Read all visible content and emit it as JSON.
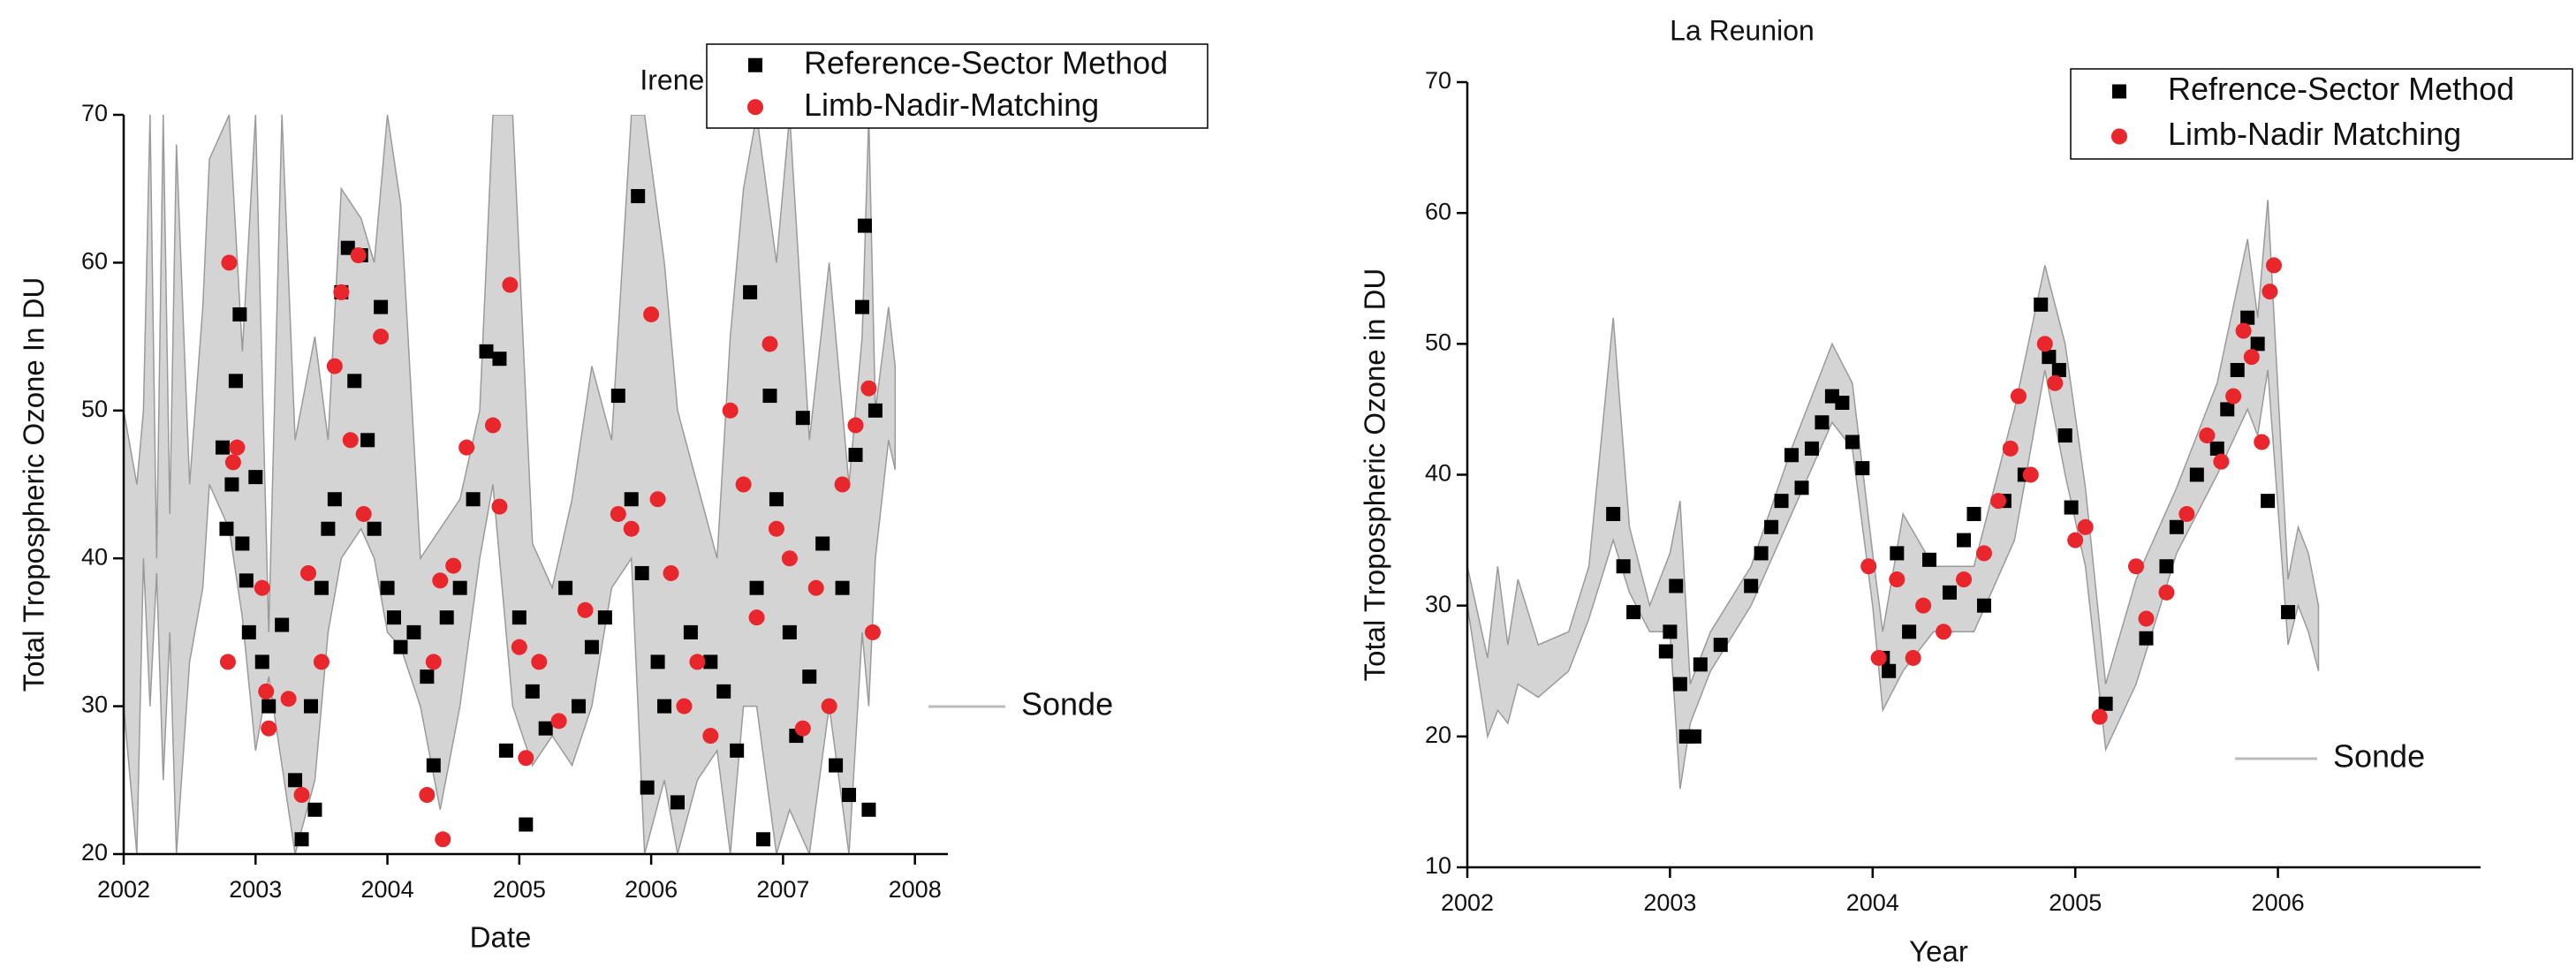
{
  "chart_data": [
    {
      "type": "scatter",
      "title": "Irene, South Africa",
      "xlabel": "Date",
      "ylabel": "Total Tropospheric Ozone In DU",
      "xlim": [
        2002,
        2008.25
      ],
      "xticks": [
        2002,
        2003,
        2004,
        2005,
        2006,
        2007,
        2008
      ],
      "ylim": [
        20,
        70
      ],
      "yticks": [
        20,
        30,
        40,
        50,
        60,
        70
      ],
      "legend": "upper right",
      "series": [
        {
          "name": "Reference-Sector Method",
          "color": "#000000",
          "marker": "square",
          "x": [
            2002.75,
            2002.78,
            2002.82,
            2002.85,
            2002.88,
            2002.9,
            2002.93,
            2002.95,
            2003.0,
            2003.05,
            2003.1,
            2003.2,
            2003.3,
            2003.35,
            2003.42,
            2003.45,
            2003.5,
            2003.55,
            2003.6,
            2003.65,
            2003.7,
            2003.75,
            2003.8,
            2003.85,
            2003.9,
            2003.95,
            2004.0,
            2004.05,
            2004.1,
            2004.2,
            2004.3,
            2004.35,
            2004.45,
            2004.55,
            2004.65,
            2004.75,
            2004.85,
            2004.9,
            2005.0,
            2005.05,
            2005.1,
            2005.2,
            2005.35,
            2005.45,
            2005.55,
            2005.65,
            2005.75,
            2005.85,
            2005.9,
            2005.93,
            2005.97,
            2006.05,
            2006.1,
            2006.2,
            2006.3,
            2006.45,
            2006.55,
            2006.65,
            2006.75,
            2006.8,
            2006.85,
            2006.9,
            2006.95,
            2007.05,
            2007.1,
            2007.15,
            2007.2,
            2007.3,
            2007.4,
            2007.45,
            2007.5,
            2007.55,
            2007.6,
            2007.62,
            2007.65,
            2007.7
          ],
          "values": [
            47.5,
            42,
            45,
            52,
            56.5,
            41,
            38.5,
            35,
            45.5,
            33,
            30,
            35.5,
            25,
            21,
            30,
            23,
            38,
            42,
            44,
            58,
            61,
            52,
            60.5,
            48,
            42,
            57,
            38,
            36,
            34,
            35,
            32,
            26,
            36,
            38,
            44,
            54,
            53.5,
            27,
            36,
            22,
            31,
            28.5,
            38,
            30,
            34,
            36,
            51,
            44,
            64.5,
            39,
            24.5,
            33,
            30,
            23.5,
            35,
            33,
            31,
            27,
            58,
            38,
            21,
            51,
            44,
            35,
            28,
            49.5,
            32,
            41,
            26,
            38,
            24,
            47,
            57,
            62.5,
            23,
            50
          ]
        },
        {
          "name": "Limb-Nadir-Matching",
          "color": "#e8262b",
          "marker": "circle",
          "x": [
            2002.8,
            2002.83,
            2002.86,
            2002.79,
            2003.05,
            2003.08,
            2003.1,
            2003.25,
            2003.35,
            2003.4,
            2003.5,
            2003.6,
            2003.65,
            2003.72,
            2003.78,
            2003.82,
            2003.95,
            2004.3,
            2004.35,
            2004.4,
            2004.42,
            2004.5,
            2004.6,
            2004.8,
            2004.85,
            2004.93,
            2005.0,
            2005.05,
            2005.15,
            2005.3,
            2005.5,
            2005.75,
            2005.85,
            2006.0,
            2006.05,
            2006.15,
            2006.25,
            2006.35,
            2006.45,
            2006.6,
            2006.7,
            2006.8,
            2006.9,
            2006.95,
            2007.05,
            2007.15,
            2007.25,
            2007.35,
            2007.45,
            2007.55,
            2007.65,
            2007.68
          ],
          "values": [
            60,
            46.5,
            47.5,
            33,
            38,
            31,
            28.5,
            30.5,
            24,
            39,
            33,
            53,
            58,
            48,
            60.5,
            43,
            55,
            24,
            33,
            38.5,
            21,
            39.5,
            47.5,
            49,
            43.5,
            58.5,
            34,
            26.5,
            33,
            29,
            36.5,
            43,
            42,
            56.5,
            44,
            39,
            30,
            33,
            28,
            50,
            45,
            36,
            54.5,
            42,
            40,
            28.5,
            38,
            30,
            45,
            49,
            51.5,
            35
          ]
        }
      ],
      "band": {
        "name": "Sonde",
        "color": "#d4d4d4",
        "x": [
          2002.0,
          2002.1,
          2002.15,
          2002.2,
          2002.25,
          2002.3,
          2002.35,
          2002.4,
          2002.5,
          2002.6,
          2002.65,
          2002.8,
          2002.9,
          2003.0,
          2003.1,
          2003.2,
          2003.3,
          2003.45,
          2003.55,
          2003.65,
          2003.8,
          2003.9,
          2004.0,
          2004.1,
          2004.25,
          2004.4,
          2004.55,
          2004.7,
          2004.8,
          2004.95,
          2005.1,
          2005.25,
          2005.4,
          2005.55,
          2005.7,
          2005.85,
          2005.95,
          2006.1,
          2006.2,
          2006.35,
          2006.5,
          2006.6,
          2006.7,
          2006.8,
          2006.95,
          2007.05,
          2007.2,
          2007.35,
          2007.5,
          2007.6,
          2007.65,
          2007.7,
          2007.8,
          2007.85
        ],
        "low": [
          30,
          20,
          40,
          30,
          39,
          25,
          35,
          20,
          33,
          38,
          45,
          42,
          36,
          27,
          32,
          26,
          20,
          25,
          35,
          40,
          42,
          40,
          35,
          34,
          30,
          23,
          30,
          40,
          45,
          30,
          26,
          28,
          26,
          30,
          38,
          40,
          20,
          25,
          20,
          25,
          27,
          20,
          30,
          30,
          20,
          23,
          20,
          30,
          20,
          35,
          30,
          40,
          48,
          46
        ],
        "high": [
          50,
          45,
          50,
          70,
          40,
          70,
          43,
          68,
          45,
          57,
          67,
          70,
          54,
          70,
          35,
          70,
          48,
          55,
          48,
          65,
          63,
          60,
          70,
          64,
          40,
          42,
          44,
          50,
          70,
          70,
          41,
          38,
          44,
          53,
          48,
          70,
          70,
          60,
          50,
          45,
          40,
          55,
          65,
          70,
          60,
          70,
          48,
          60,
          45,
          55,
          70,
          50,
          57,
          53
        ]
      }
    },
    {
      "type": "scatter",
      "title": "La Reunion",
      "xlabel": "Year",
      "ylabel": "Total Tropospheric Ozone in DU",
      "xlim": [
        2002,
        2007
      ],
      "xticks": [
        2002,
        2003,
        2004,
        2005,
        2006
      ],
      "ylim": [
        10,
        70
      ],
      "yticks": [
        10,
        20,
        30,
        40,
        50,
        60,
        70
      ],
      "legend": "upper right",
      "series": [
        {
          "name": "Refrence-Sector Method",
          "color": "#000000",
          "marker": "square",
          "x": [
            2002.72,
            2002.77,
            2002.82,
            2002.98,
            2003.0,
            2003.03,
            2003.05,
            2003.08,
            2003.12,
            2003.15,
            2003.25,
            2003.4,
            2003.45,
            2003.5,
            2003.55,
            2003.6,
            2003.65,
            2003.7,
            2003.75,
            2003.8,
            2003.85,
            2003.9,
            2003.95,
            2004.05,
            2004.08,
            2004.12,
            2004.18,
            2004.28,
            2004.38,
            2004.45,
            2004.5,
            2004.55,
            2004.65,
            2004.75,
            2004.83,
            2004.87,
            2004.92,
            2004.95,
            2004.98,
            2005.15,
            2005.35,
            2005.45,
            2005.5,
            2005.6,
            2005.7,
            2005.75,
            2005.8,
            2005.85,
            2005.9,
            2005.95,
            2006.05
          ],
          "values": [
            37,
            33,
            29.5,
            26.5,
            28,
            31.5,
            24,
            20,
            20,
            25.5,
            27,
            31.5,
            34,
            36,
            38,
            41.5,
            39,
            42,
            44,
            46,
            45.5,
            42.5,
            40.5,
            26,
            25,
            34,
            28,
            33.5,
            31,
            35,
            37,
            30,
            38,
            40,
            53,
            49,
            48,
            43,
            37.5,
            22.5,
            27.5,
            33,
            36,
            40,
            42,
            45,
            48,
            52,
            50,
            38,
            29.5
          ]
        },
        {
          "name": "Limb-Nadir Matching",
          "color": "#e8262b",
          "marker": "circle",
          "x": [
            2003.98,
            2004.03,
            2004.12,
            2004.2,
            2004.25,
            2004.35,
            2004.45,
            2004.55,
            2004.62,
            2004.68,
            2004.72,
            2004.78,
            2004.85,
            2004.9,
            2005.0,
            2005.05,
            2005.12,
            2005.3,
            2005.35,
            2005.45,
            2005.55,
            2005.65,
            2005.72,
            2005.78,
            2005.83,
            2005.87,
            2005.92,
            2005.96,
            2005.98
          ],
          "values": [
            33,
            26,
            32,
            26,
            30,
            28,
            32,
            34,
            38,
            42,
            46,
            40,
            50,
            47,
            35,
            36,
            21.5,
            33,
            29,
            31,
            37,
            43,
            41,
            46,
            51,
            49,
            42.5,
            54,
            56
          ]
        }
      ],
      "band": {
        "name": "Sonde",
        "color": "#d4d4d4",
        "x": [
          2002.0,
          2002.1,
          2002.15,
          2002.2,
          2002.25,
          2002.35,
          2002.5,
          2002.6,
          2002.72,
          2002.8,
          2002.9,
          2003.0,
          2003.05,
          2003.1,
          2003.2,
          2003.4,
          2003.6,
          2003.8,
          2003.9,
          2004.0,
          2004.05,
          2004.15,
          2004.3,
          2004.5,
          2004.7,
          2004.85,
          2004.95,
          2005.05,
          2005.15,
          2005.3,
          2005.5,
          2005.7,
          2005.85,
          2005.9,
          2005.95,
          2006.05,
          2006.1,
          2006.15,
          2006.2
        ],
        "low": [
          30,
          20,
          22,
          21,
          24,
          23,
          25,
          29,
          35,
          31,
          28,
          28,
          16,
          21,
          25,
          30,
          37,
          44,
          42,
          30,
          22,
          25,
          28,
          28,
          35,
          48,
          40,
          33,
          19,
          24,
          34,
          40,
          45,
          43,
          48,
          27,
          30,
          28,
          25
        ],
        "high": [
          33,
          26,
          33,
          27,
          32,
          27,
          28,
          33,
          52,
          36,
          30,
          34,
          38,
          24,
          28,
          33,
          42,
          50,
          47,
          34,
          28,
          37,
          33,
          33,
          45,
          56,
          50,
          39,
          24,
          32,
          39,
          47,
          58,
          52,
          61,
          32,
          36,
          34,
          30
        ]
      }
    }
  ]
}
